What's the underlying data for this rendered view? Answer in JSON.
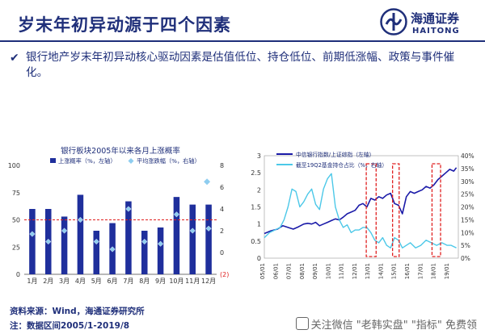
{
  "slide": {
    "title": "岁末年初异动源于四个因素",
    "bullet": "银行地产岁末年初异动核心驱动因素是估值低位、持仓低位、前期低涨幅、政策与事件催化。"
  },
  "logo": {
    "cn": "海通证券",
    "en": "HAITONG"
  },
  "footer": {
    "source": "资料来源：Wind，海通证券研究所",
    "note": "注：数据区间2005/1-2019/8"
  },
  "watermark": {
    "text": "关注微信 \"老韩实盘\" \"指标\" 免费领"
  },
  "chart_data": [
    {
      "type": "bar",
      "title": "银行板块2005年以来各月上涨概率",
      "legend": [
        "上涨概率（%，左轴）",
        "平均涨跌幅（%，右轴）"
      ],
      "categories": [
        "1月",
        "2月",
        "3月",
        "4月",
        "5月",
        "6月",
        "7月",
        "8月",
        "9月",
        "10月",
        "11月",
        "12月"
      ],
      "series": [
        {
          "name": "上涨概率（%，左轴）",
          "values": [
            60,
            60,
            53,
            73,
            40,
            47,
            67,
            40,
            43,
            71,
            64,
            64
          ],
          "color": "#1f2f9c"
        },
        {
          "name": "平均涨跌幅（%，右轴）",
          "values": [
            1.7,
            1.0,
            2.0,
            3.0,
            1.0,
            0.3,
            4.0,
            1.0,
            0.8,
            3.5,
            2.0,
            2.2
          ],
          "color": "#8ecdf0"
        }
      ],
      "extra_point": {
        "x": "12月",
        "value": 6.5
      },
      "y_left": {
        "min": 0,
        "max": 100,
        "ticks": [
          0,
          25,
          50,
          75,
          100
        ]
      },
      "y_right": {
        "min": -2,
        "max": 8,
        "ticks": [
          -2,
          0,
          2,
          4,
          6,
          8
        ],
        "tick_labels": [
          "(2)",
          "0",
          "2",
          "4",
          "6",
          "8"
        ]
      },
      "reference_line": {
        "value": 50,
        "axis": "left",
        "style": "dashed",
        "color": "#e02020"
      }
    },
    {
      "type": "line",
      "legend": [
        "中信银行指数/上证综指（左轴）",
        "截至19Q2基金持仓占比（%，右轴）"
      ],
      "x_ticks": [
        "05/01",
        "06/01",
        "07/01",
        "08/01",
        "09/01",
        "10/01",
        "11/01",
        "12/01",
        "13/01",
        "14/01",
        "15/01",
        "16/01",
        "17/01",
        "18/01",
        "19/01"
      ],
      "y_left": {
        "min": 0,
        "max": 3,
        "ticks": [
          0,
          0.5,
          1,
          1.5,
          2,
          2.5,
          3
        ],
        "tick_labels": [
          "0",
          "0.5",
          "1",
          "1.5",
          "2",
          "2.5",
          "3"
        ]
      },
      "y_right": {
        "min": 0,
        "max": 40,
        "ticks": [
          0,
          5,
          10,
          15,
          20,
          25,
          30,
          35,
          40
        ],
        "tick_labels": [
          "0%",
          "5%",
          "10%",
          "15%",
          "20%",
          "25%",
          "30%",
          "35%",
          "40%"
        ]
      },
      "series": [
        {
          "name": "中信银行指数/上证综指（左轴）",
          "axis": "left",
          "color": "#1a1aa8",
          "x": [
            2005.0,
            2005.5,
            2006.0,
            2006.4,
            2006.8,
            2007.2,
            2007.6,
            2008.0,
            2008.3,
            2008.6,
            2008.9,
            2009.2,
            2009.5,
            2009.8,
            2010.1,
            2010.4,
            2010.7,
            2011.0,
            2011.3,
            2011.6,
            2011.9,
            2012.2,
            2012.5,
            2012.8,
            2013.1,
            2013.4,
            2013.7,
            2014.0,
            2014.3,
            2014.6,
            2014.9,
            2015.2,
            2015.5,
            2015.8,
            2016.1,
            2016.4,
            2016.7,
            2017.0,
            2017.3,
            2017.6,
            2017.9,
            2018.2,
            2018.5,
            2018.8,
            2019.1,
            2019.4,
            2019.6
          ],
          "values": [
            0.72,
            0.8,
            0.85,
            0.95,
            0.9,
            0.85,
            0.92,
            1.0,
            1.02,
            1.0,
            1.05,
            0.95,
            1.0,
            1.05,
            1.1,
            1.15,
            1.12,
            1.2,
            1.3,
            1.35,
            1.4,
            1.55,
            1.6,
            1.5,
            1.75,
            1.7,
            1.8,
            1.75,
            1.85,
            1.9,
            1.6,
            1.55,
            1.3,
            1.8,
            1.95,
            1.9,
            1.95,
            2.0,
            2.1,
            2.05,
            2.15,
            2.3,
            2.4,
            2.5,
            2.6,
            2.55,
            2.65
          ]
        },
        {
          "name": "截至19Q2基金持仓占比（%，右轴）",
          "axis": "right",
          "color": "#4cc8e8",
          "x": [
            2005.0,
            2005.4,
            2005.8,
            2006.2,
            2006.5,
            2006.8,
            2007.1,
            2007.4,
            2007.7,
            2008.0,
            2008.3,
            2008.6,
            2008.9,
            2009.2,
            2009.5,
            2009.8,
            2010.1,
            2010.4,
            2010.7,
            2011.0,
            2011.3,
            2011.6,
            2011.9,
            2012.2,
            2012.5,
            2012.8,
            2013.1,
            2013.4,
            2013.7,
            2014.0,
            2014.3,
            2014.6,
            2014.9,
            2015.2,
            2015.5,
            2015.8,
            2016.1,
            2016.5,
            2016.9,
            2017.3,
            2017.7,
            2018.1,
            2018.5,
            2018.9,
            2019.2,
            2019.6
          ],
          "values": [
            8,
            10,
            11,
            12,
            15,
            20,
            27,
            26,
            20,
            22,
            25,
            27,
            21,
            19,
            27,
            31,
            33,
            20,
            15,
            12,
            13,
            10,
            11,
            11,
            12,
            12,
            10,
            7,
            6,
            8,
            5,
            4,
            8,
            7,
            4,
            5,
            6,
            4,
            5,
            7,
            6,
            5,
            6,
            5,
            5,
            4
          ]
        }
      ],
      "highlight_boxes": [
        {
          "x_from": 2012.75,
          "x_to": 2013.5
        },
        {
          "x_from": 2014.75,
          "x_to": 2015.25
        },
        {
          "x_from": 2017.75,
          "x_to": 2018.4
        }
      ]
    }
  ]
}
